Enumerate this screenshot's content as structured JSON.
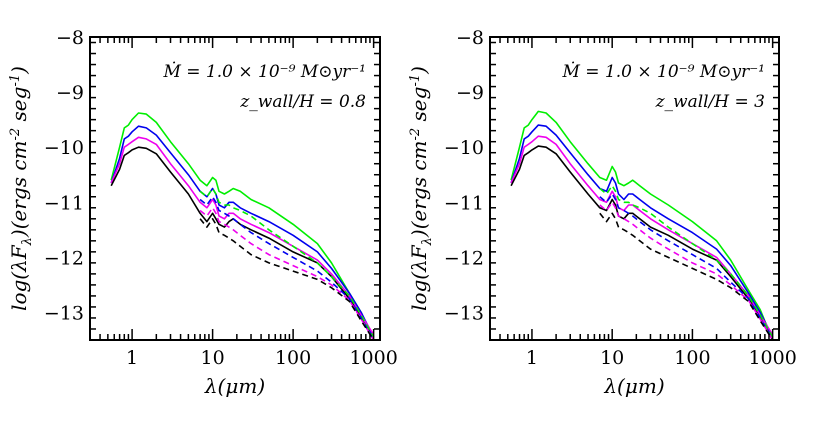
{
  "chart_data": [
    {
      "type": "line",
      "title": "",
      "xlabel": "λ(μm)",
      "ylabel": "log(λF_λ)(ergs cm^-2 seg^-1)",
      "xscale": "log",
      "xlim": [
        0.3,
        1200
      ],
      "ylim": [
        -13.5,
        -8
      ],
      "xticks": [
        1,
        10,
        100,
        1000
      ],
      "xtick_labels": [
        "1",
        "10",
        "100",
        "1000"
      ],
      "yticks": [
        -8,
        -9,
        -10,
        -11,
        -12,
        -13
      ],
      "ytick_labels": [
        "−8",
        "−9",
        "−10",
        "−11",
        "−12",
        "−13"
      ],
      "grid": false,
      "annotations": [
        "Ṁ = 1.0 × 10⁻⁹ M⊙yr⁻¹",
        "z_wall/H = 0.8"
      ],
      "series": [
        {
          "color": "#00ee00",
          "style": "solid",
          "x": [
            0.55,
            0.7,
            0.8,
            0.9,
            1.0,
            1.2,
            1.5,
            2.0,
            3.0,
            5.0,
            7.0,
            8.5,
            10.0,
            11.0,
            12.0,
            14.0,
            16.0,
            18.0,
            22.0,
            30.0,
            50.0,
            100.0,
            200.0,
            300.0,
            500.0,
            700.0,
            1000.0
          ],
          "y": [
            -10.6,
            -10.0,
            -9.65,
            -9.6,
            -9.5,
            -9.38,
            -9.4,
            -9.55,
            -9.9,
            -10.3,
            -10.6,
            -10.7,
            -10.55,
            -10.6,
            -10.8,
            -10.85,
            -10.8,
            -10.75,
            -10.8,
            -10.95,
            -11.1,
            -11.4,
            -11.75,
            -12.1,
            -12.65,
            -13.0,
            -13.5
          ]
        },
        {
          "color": "#0000ee",
          "style": "solid",
          "x": [
            0.55,
            0.7,
            0.8,
            0.9,
            1.0,
            1.2,
            1.5,
            2.0,
            3.0,
            5.0,
            7.0,
            8.5,
            10.0,
            11.0,
            12.0,
            14.0,
            16.0,
            18.0,
            22.0,
            30.0,
            50.0,
            100.0,
            200.0,
            300.0,
            500.0,
            700.0,
            1000.0
          ],
          "y": [
            -10.65,
            -10.2,
            -9.85,
            -9.8,
            -9.72,
            -9.62,
            -9.65,
            -9.78,
            -10.1,
            -10.5,
            -10.8,
            -10.9,
            -10.75,
            -10.85,
            -11.05,
            -11.1,
            -11.0,
            -11.0,
            -11.1,
            -11.2,
            -11.35,
            -11.6,
            -11.9,
            -12.2,
            -12.65,
            -13.0,
            -13.45
          ]
        },
        {
          "color": "#ee00ee",
          "style": "solid",
          "x": [
            0.55,
            0.7,
            0.8,
            0.9,
            1.0,
            1.2,
            1.5,
            2.0,
            3.0,
            5.0,
            7.0,
            8.5,
            10.0,
            11.0,
            12.0,
            14.0,
            16.0,
            18.0,
            22.0,
            30.0,
            50.0,
            100.0,
            200.0,
            300.0,
            500.0,
            700.0,
            1000.0
          ],
          "y": [
            -10.65,
            -10.3,
            -10.0,
            -9.95,
            -9.9,
            -9.82,
            -9.85,
            -9.95,
            -10.3,
            -10.7,
            -11.0,
            -11.1,
            -10.95,
            -11.05,
            -11.25,
            -11.3,
            -11.2,
            -11.2,
            -11.3,
            -11.4,
            -11.55,
            -11.8,
            -12.05,
            -12.3,
            -12.7,
            -13.05,
            -13.4
          ]
        },
        {
          "color": "#000000",
          "style": "solid",
          "x": [
            0.55,
            0.7,
            0.8,
            0.9,
            1.0,
            1.2,
            1.5,
            2.0,
            3.0,
            5.0,
            7.0,
            8.5,
            10.0,
            11.0,
            12.0,
            14.0,
            16.0,
            18.0,
            22.0,
            30.0,
            50.0,
            100.0,
            200.0,
            300.0,
            500.0,
            700.0,
            1000.0
          ],
          "y": [
            -10.7,
            -10.4,
            -10.15,
            -10.1,
            -10.05,
            -10.0,
            -10.02,
            -10.12,
            -10.45,
            -10.85,
            -11.2,
            -11.35,
            -11.2,
            -11.3,
            -11.4,
            -11.45,
            -11.35,
            -11.3,
            -11.4,
            -11.5,
            -11.65,
            -11.9,
            -12.1,
            -12.35,
            -12.75,
            -13.1,
            -13.5
          ]
        },
        {
          "color": "#00ee00",
          "style": "dashed",
          "x": [
            7.0,
            8.5,
            10.0,
            11.0,
            12.0,
            14.0,
            16.0,
            18.0,
            22.0,
            30.0,
            50.0,
            100.0,
            200.0,
            300.0,
            500.0,
            700.0,
            1000.0
          ],
          "y": [
            -10.8,
            -10.9,
            -10.75,
            -10.85,
            -11.0,
            -11.05,
            -11.05,
            -11.1,
            -11.15,
            -11.25,
            -11.5,
            -11.8,
            -12.1,
            -12.35,
            -12.7,
            -13.05,
            -13.45
          ]
        },
        {
          "color": "#0000ee",
          "style": "dashed",
          "x": [
            7.0,
            8.5,
            10.0,
            11.0,
            12.0,
            14.0,
            16.0,
            18.0,
            22.0,
            30.0,
            50.0,
            100.0,
            200.0,
            300.0,
            500.0,
            700.0,
            1000.0
          ],
          "y": [
            -10.95,
            -11.05,
            -10.9,
            -11.0,
            -11.15,
            -11.2,
            -11.25,
            -11.3,
            -11.4,
            -11.55,
            -11.75,
            -12.0,
            -12.25,
            -12.45,
            -12.75,
            -13.1,
            -13.5
          ]
        },
        {
          "color": "#ee00ee",
          "style": "dashed",
          "x": [
            7.0,
            8.5,
            10.0,
            11.0,
            12.0,
            14.0,
            16.0,
            18.0,
            22.0,
            30.0,
            50.0,
            100.0,
            200.0,
            300.0,
            500.0,
            700.0,
            1000.0
          ],
          "y": [
            -11.15,
            -11.25,
            -11.1,
            -11.2,
            -11.35,
            -11.4,
            -11.45,
            -11.5,
            -11.6,
            -11.75,
            -11.95,
            -12.15,
            -12.35,
            -12.5,
            -12.78,
            -13.12,
            -13.5
          ]
        },
        {
          "color": "#000000",
          "style": "dashed",
          "x": [
            7.0,
            8.5,
            10.0,
            11.0,
            12.0,
            14.0,
            16.0,
            18.0,
            22.0,
            30.0,
            50.0,
            100.0,
            200.0,
            300.0,
            500.0,
            700.0,
            1000.0
          ],
          "y": [
            -11.3,
            -11.45,
            -11.3,
            -11.4,
            -11.55,
            -11.6,
            -11.65,
            -11.7,
            -11.8,
            -11.95,
            -12.1,
            -12.25,
            -12.4,
            -12.55,
            -12.8,
            -13.15,
            -13.5
          ]
        }
      ]
    },
    {
      "type": "line",
      "title": "",
      "xlabel": "λ(μm)",
      "ylabel": "log(λF_λ)(ergs cm^-2 seg^-1)",
      "xscale": "log",
      "xlim": [
        0.3,
        1200
      ],
      "ylim": [
        -13.5,
        -8
      ],
      "xticks": [
        1,
        10,
        100,
        1000
      ],
      "xtick_labels": [
        "1",
        "10",
        "100",
        "1000"
      ],
      "yticks": [
        -8,
        -9,
        -10,
        -11,
        -12,
        -13
      ],
      "ytick_labels": [
        "−8",
        "−9",
        "−10",
        "−11",
        "−12",
        "−13"
      ],
      "grid": false,
      "annotations": [
        "Ṁ = 1.0 × 10⁻⁹ M⊙yr⁻¹",
        "z_wall/H = 3"
      ],
      "series": [
        {
          "color": "#00ee00",
          "style": "solid",
          "x": [
            0.55,
            0.7,
            0.8,
            0.9,
            1.0,
            1.2,
            1.5,
            2.0,
            3.0,
            5.0,
            7.0,
            8.5,
            10.0,
            11.0,
            12.0,
            14.0,
            16.0,
            18.0,
            22.0,
            30.0,
            50.0,
            100.0,
            200.0,
            300.0,
            500.0,
            700.0,
            1000.0
          ],
          "y": [
            -10.6,
            -10.0,
            -9.65,
            -9.6,
            -9.5,
            -9.35,
            -9.38,
            -9.55,
            -9.9,
            -10.3,
            -10.55,
            -10.6,
            -10.35,
            -10.45,
            -10.65,
            -10.7,
            -10.65,
            -10.6,
            -10.7,
            -10.85,
            -11.05,
            -11.35,
            -11.7,
            -12.05,
            -12.6,
            -12.95,
            -13.5
          ]
        },
        {
          "color": "#0000ee",
          "style": "solid",
          "x": [
            0.55,
            0.7,
            0.8,
            0.9,
            1.0,
            1.2,
            1.5,
            2.0,
            3.0,
            5.0,
            7.0,
            8.5,
            10.0,
            11.0,
            12.0,
            14.0,
            16.0,
            18.0,
            22.0,
            30.0,
            50.0,
            100.0,
            200.0,
            300.0,
            500.0,
            700.0,
            1000.0
          ],
          "y": [
            -10.65,
            -10.2,
            -9.85,
            -9.8,
            -9.72,
            -9.6,
            -9.62,
            -9.78,
            -10.1,
            -10.5,
            -10.75,
            -10.8,
            -10.55,
            -10.65,
            -10.85,
            -10.95,
            -10.85,
            -10.85,
            -10.95,
            -11.1,
            -11.3,
            -11.55,
            -11.85,
            -12.15,
            -12.65,
            -13.0,
            -13.45
          ]
        },
        {
          "color": "#ee00ee",
          "style": "solid",
          "x": [
            0.55,
            0.7,
            0.8,
            0.9,
            1.0,
            1.2,
            1.5,
            2.0,
            3.0,
            5.0,
            7.0,
            8.5,
            10.0,
            11.0,
            12.0,
            14.0,
            16.0,
            18.0,
            22.0,
            30.0,
            50.0,
            100.0,
            200.0,
            300.0,
            500.0,
            700.0,
            1000.0
          ],
          "y": [
            -10.65,
            -10.3,
            -10.0,
            -9.95,
            -9.9,
            -9.8,
            -9.82,
            -9.95,
            -10.3,
            -10.7,
            -10.95,
            -11.0,
            -10.8,
            -10.9,
            -11.1,
            -11.15,
            -11.05,
            -11.05,
            -11.15,
            -11.3,
            -11.5,
            -11.75,
            -12.0,
            -12.3,
            -12.7,
            -13.05,
            -13.4
          ]
        },
        {
          "color": "#000000",
          "style": "solid",
          "x": [
            0.55,
            0.7,
            0.8,
            0.9,
            1.0,
            1.2,
            1.5,
            2.0,
            3.0,
            5.0,
            7.0,
            8.5,
            10.0,
            11.0,
            12.0,
            14.0,
            16.0,
            18.0,
            22.0,
            30.0,
            50.0,
            100.0,
            200.0,
            300.0,
            500.0,
            700.0,
            1000.0
          ],
          "y": [
            -10.7,
            -10.4,
            -10.15,
            -10.1,
            -10.05,
            -9.98,
            -10.0,
            -10.12,
            -10.45,
            -10.85,
            -11.1,
            -11.15,
            -10.95,
            -11.05,
            -11.25,
            -11.3,
            -11.2,
            -11.2,
            -11.3,
            -11.45,
            -11.6,
            -11.85,
            -12.05,
            -12.35,
            -12.75,
            -13.1,
            -13.5
          ]
        },
        {
          "color": "#00ee00",
          "style": "dashed",
          "x": [
            7.0,
            8.5,
            10.0,
            11.0,
            12.0,
            14.0,
            16.0,
            18.0,
            22.0,
            30.0,
            50.0,
            100.0,
            200.0,
            300.0,
            500.0,
            700.0,
            1000.0
          ],
          "y": [
            -10.75,
            -10.85,
            -10.7,
            -10.8,
            -10.95,
            -11.0,
            -11.0,
            -11.05,
            -11.1,
            -11.2,
            -11.45,
            -11.75,
            -12.05,
            -12.3,
            -12.7,
            -13.05,
            -13.45
          ]
        },
        {
          "color": "#0000ee",
          "style": "dashed",
          "x": [
            7.0,
            8.5,
            10.0,
            11.0,
            12.0,
            14.0,
            16.0,
            18.0,
            22.0,
            30.0,
            50.0,
            100.0,
            200.0,
            300.0,
            500.0,
            700.0,
            1000.0
          ],
          "y": [
            -10.9,
            -11.0,
            -10.85,
            -10.95,
            -11.1,
            -11.15,
            -11.2,
            -11.25,
            -11.35,
            -11.5,
            -11.7,
            -11.95,
            -12.2,
            -12.45,
            -12.75,
            -13.1,
            -13.5
          ]
        },
        {
          "color": "#ee00ee",
          "style": "dashed",
          "x": [
            7.0,
            8.5,
            10.0,
            11.0,
            12.0,
            14.0,
            16.0,
            18.0,
            22.0,
            30.0,
            50.0,
            100.0,
            200.0,
            300.0,
            500.0,
            700.0,
            1000.0
          ],
          "y": [
            -11.05,
            -11.15,
            -11.0,
            -11.1,
            -11.25,
            -11.3,
            -11.35,
            -11.4,
            -11.5,
            -11.65,
            -11.85,
            -12.1,
            -12.3,
            -12.5,
            -12.78,
            -13.12,
            -13.5
          ]
        },
        {
          "color": "#000000",
          "style": "dashed",
          "x": [
            7.0,
            8.5,
            10.0,
            11.0,
            12.0,
            14.0,
            16.0,
            18.0,
            22.0,
            30.0,
            50.0,
            100.0,
            200.0,
            300.0,
            500.0,
            700.0,
            1000.0
          ],
          "y": [
            -11.2,
            -11.35,
            -11.2,
            -11.3,
            -11.45,
            -11.5,
            -11.55,
            -11.6,
            -11.7,
            -11.85,
            -12.0,
            -12.2,
            -12.4,
            -12.55,
            -12.8,
            -13.15,
            -13.5
          ]
        }
      ]
    }
  ]
}
